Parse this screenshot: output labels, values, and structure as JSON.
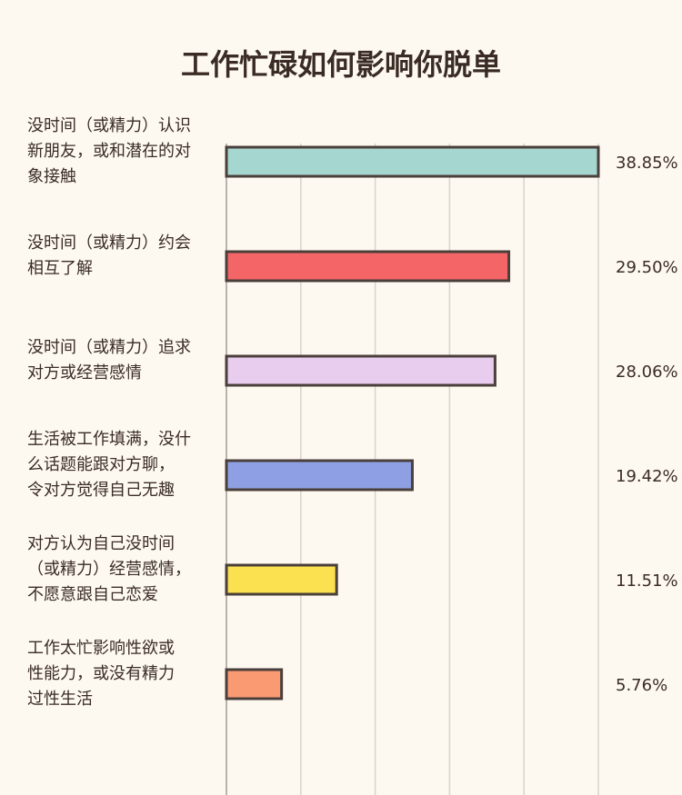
{
  "chart_data": {
    "type": "bar",
    "orientation": "horizontal",
    "title": "工作忙碌如何影响你脱单",
    "categories": [
      [
        "没时间（或精力）认识",
        "新朋友，或和潜在的对",
        "象接触"
      ],
      [
        "没时间（或精力）约会",
        "相互了解"
      ],
      [
        "没时间（或精力）追求",
        "对方或经营感情"
      ],
      [
        "生活被工作填满，没什",
        "么话题能跟对方聊，",
        "令对方觉得自己无趣"
      ],
      [
        "对方认为自己没时间",
        "（或精力）经营感情，",
        "不愿意跟自己恋爱"
      ],
      [
        "工作太忙影响性欲或",
        "性能力，或没有精力",
        "过性生活"
      ]
    ],
    "values": [
      38.85,
      29.5,
      28.06,
      19.42,
      11.51,
      5.76
    ],
    "value_labels": [
      "38.85%",
      "29.50%",
      "28.06%",
      "19.42%",
      "11.51%",
      "5.76%"
    ],
    "colors": [
      "#a6d6d0",
      "#f36566",
      "#e8cdee",
      "#8ea0e3",
      "#fbe04f",
      "#f99a73"
    ],
    "xlim": [
      0,
      38.85
    ],
    "grid": true,
    "legend": "none"
  }
}
